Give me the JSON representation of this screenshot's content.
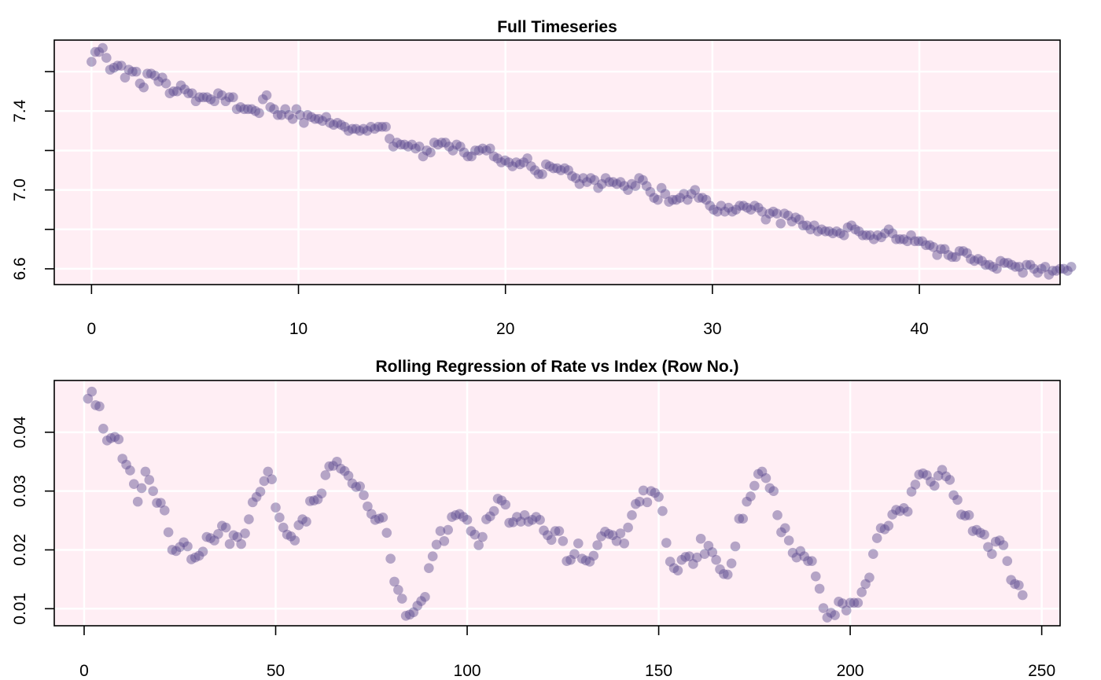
{
  "colors": {
    "panel_bg": "#ffeef4",
    "grid": "#ffffff",
    "point": "#5b4a8e",
    "axis": "#000000"
  },
  "chart_data": [
    {
      "type": "scatter",
      "title": "Full Timeseries",
      "xlabel": "",
      "ylabel": "",
      "xlim": [
        -1.8,
        46.8
      ],
      "ylim": [
        6.52,
        7.76
      ],
      "xticks": [
        0,
        10,
        20,
        30,
        40
      ],
      "xtick_labels": [
        "0",
        "10",
        "20",
        "30",
        "40"
      ],
      "yticks": [
        6.6,
        6.8,
        7.0,
        7.2,
        7.4,
        7.6
      ],
      "ytick_labels": [
        "6.6",
        "",
        "7.0",
        "",
        "7.4",
        ""
      ],
      "grid": true,
      "x_start": 0,
      "x_step": 0.18,
      "y": [
        7.65,
        7.7,
        7.7,
        7.72,
        7.67,
        7.61,
        7.62,
        7.63,
        7.63,
        7.57,
        7.61,
        7.6,
        7.6,
        7.54,
        7.52,
        7.59,
        7.59,
        7.58,
        7.55,
        7.57,
        7.54,
        7.49,
        7.5,
        7.5,
        7.53,
        7.51,
        7.49,
        7.49,
        7.45,
        7.47,
        7.47,
        7.47,
        7.46,
        7.45,
        7.49,
        7.48,
        7.45,
        7.47,
        7.47,
        7.41,
        7.42,
        7.41,
        7.41,
        7.41,
        7.4,
        7.39,
        7.46,
        7.48,
        7.42,
        7.41,
        7.38,
        7.38,
        7.41,
        7.38,
        7.36,
        7.41,
        7.38,
        7.34,
        7.38,
        7.37,
        7.36,
        7.36,
        7.35,
        7.37,
        7.34,
        7.33,
        7.34,
        7.33,
        7.32,
        7.3,
        7.31,
        7.31,
        7.3,
        7.31,
        7.3,
        7.32,
        7.31,
        7.32,
        7.32,
        7.32,
        7.26,
        7.22,
        7.24,
        7.23,
        7.23,
        7.22,
        7.23,
        7.21,
        7.22,
        7.17,
        7.2,
        7.19,
        7.24,
        7.23,
        7.24,
        7.24,
        7.22,
        7.2,
        7.23,
        7.22,
        7.19,
        7.17,
        7.17,
        7.2,
        7.2,
        7.21,
        7.2,
        7.21,
        7.17,
        7.16,
        7.14,
        7.15,
        7.14,
        7.12,
        7.14,
        7.13,
        7.14,
        7.16,
        7.12,
        7.1,
        7.08,
        7.08,
        7.13,
        7.12,
        7.11,
        7.11,
        7.1,
        7.11,
        7.1,
        7.07,
        7.06,
        7.03,
        7.06,
        7.04,
        7.06,
        7.05,
        7.01,
        7.03,
        7.06,
        7.04,
        7.04,
        7.03,
        7.04,
        7.02,
        7.0,
        7.03,
        7.02,
        7.06,
        7.05,
        7.02,
        6.99,
        6.96,
        6.95,
        7.01,
        6.98,
        6.94,
        6.95,
        6.95,
        6.96,
        6.98,
        6.95,
        6.98,
        7.0,
        6.96,
        6.96,
        6.95,
        6.92,
        6.9,
        6.89,
        6.92,
        6.89,
        6.91,
        6.89,
        6.9,
        6.92,
        6.92,
        6.91,
        6.9,
        6.92,
        6.91,
        6.89,
        6.85,
        6.88,
        6.89,
        6.88,
        6.83,
        6.88,
        6.87,
        6.84,
        6.86,
        6.85,
        6.82,
        6.82,
        6.8,
        6.82,
        6.79,
        6.8,
        6.79,
        6.79,
        6.78,
        6.79,
        6.78,
        6.77,
        6.81,
        6.82,
        6.8,
        6.79,
        6.77,
        6.77,
        6.77,
        6.75,
        6.77,
        6.76,
        6.78,
        6.8,
        6.78,
        6.75,
        6.75,
        6.75,
        6.74,
        6.77,
        6.74,
        6.74,
        6.74,
        6.72,
        6.72,
        6.71,
        6.67,
        6.7,
        6.7,
        6.67,
        6.66,
        6.66,
        6.69,
        6.69,
        6.68,
        6.65,
        6.64,
        6.65,
        6.64,
        6.62,
        6.62,
        6.61,
        6.6,
        6.64,
        6.63,
        6.63,
        6.62,
        6.61,
        6.61,
        6.58,
        6.62,
        6.62,
        6.6,
        6.58,
        6.6,
        6.61,
        6.57,
        6.59,
        6.59,
        6.6,
        6.6,
        6.59,
        6.61
      ]
    },
    {
      "type": "scatter",
      "title": "Rolling Regression of Rate vs Index (Row No.)",
      "xlabel": "",
      "ylabel": "",
      "xlim": [
        -7.8,
        254.8
      ],
      "ylim": [
        0.0071,
        0.0488
      ],
      "xticks": [
        0,
        50,
        100,
        150,
        200,
        250
      ],
      "xtick_labels": [
        "0",
        "50",
        "100",
        "150",
        "200",
        "250"
      ],
      "yticks": [
        0.01,
        0.02,
        0.03,
        0.04
      ],
      "ytick_labels": [
        "0.01",
        "0.02",
        "0.03",
        "0.04"
      ],
      "grid": true,
      "x_start": 1,
      "x_step": 1,
      "y": [
        0.0457,
        0.0469,
        0.0446,
        0.0444,
        0.0406,
        0.0386,
        0.039,
        0.0392,
        0.0388,
        0.0355,
        0.0345,
        0.0335,
        0.0312,
        0.0282,
        0.0305,
        0.0333,
        0.0319,
        0.03,
        0.028,
        0.028,
        0.0267,
        0.023,
        0.02,
        0.0198,
        0.0205,
        0.0213,
        0.0206,
        0.0184,
        0.0187,
        0.019,
        0.0197,
        0.0222,
        0.022,
        0.0216,
        0.0227,
        0.0241,
        0.0238,
        0.021,
        0.0225,
        0.0222,
        0.021,
        0.0228,
        0.0252,
        0.0281,
        0.029,
        0.0299,
        0.0317,
        0.0333,
        0.032,
        0.0272,
        0.0255,
        0.0238,
        0.0226,
        0.0223,
        0.0216,
        0.0242,
        0.0252,
        0.0248,
        0.0283,
        0.0284,
        0.0286,
        0.0296,
        0.0327,
        0.0342,
        0.0343,
        0.035,
        0.0338,
        0.0334,
        0.0326,
        0.0313,
        0.0307,
        0.0308,
        0.0293,
        0.0274,
        0.0261,
        0.0251,
        0.0253,
        0.0255,
        0.0229,
        0.0185,
        0.0146,
        0.0132,
        0.0117,
        0.0088,
        0.009,
        0.0094,
        0.0105,
        0.0113,
        0.012,
        0.0169,
        0.0189,
        0.0209,
        0.0232,
        0.0215,
        0.0234,
        0.0256,
        0.0259,
        0.0261,
        0.0256,
        0.0251,
        0.0232,
        0.0226,
        0.0208,
        0.0222,
        0.0252,
        0.0257,
        0.0266,
        0.0287,
        0.0284,
        0.0277,
        0.0246,
        0.0247,
        0.0256,
        0.0248,
        0.0259,
        0.0248,
        0.0251,
        0.0256,
        0.0251,
        0.0233,
        0.0225,
        0.0217,
        0.0232,
        0.0232,
        0.0215,
        0.0181,
        0.0183,
        0.0193,
        0.0211,
        0.0185,
        0.0182,
        0.018,
        0.019,
        0.0208,
        0.0223,
        0.0231,
        0.0227,
        0.0225,
        0.0215,
        0.0228,
        0.0211,
        0.0238,
        0.0259,
        0.0278,
        0.0282,
        0.0301,
        0.0281,
        0.03,
        0.0297,
        0.029,
        0.0266,
        0.0212,
        0.018,
        0.0169,
        0.0165,
        0.0183,
        0.0188,
        0.0189,
        0.0176,
        0.0187,
        0.0219,
        0.0193,
        0.0207,
        0.0196,
        0.0183,
        0.0167,
        0.0159,
        0.0158,
        0.0177,
        0.0206,
        0.0253,
        0.0253,
        0.0282,
        0.0291,
        0.0309,
        0.0329,
        0.0333,
        0.0322,
        0.0305,
        0.03,
        0.0259,
        0.023,
        0.0237,
        0.0216,
        0.0195,
        0.0187,
        0.0198,
        0.0189,
        0.0181,
        0.0181,
        0.0155,
        0.0134,
        0.0101,
        0.0085,
        0.0093,
        0.0089,
        0.0112,
        0.0109,
        0.0097,
        0.011,
        0.011,
        0.011,
        0.0128,
        0.0142,
        0.0153,
        0.0193,
        0.022,
        0.0237,
        0.0235,
        0.0241,
        0.026,
        0.0268,
        0.0266,
        0.0271,
        0.0265,
        0.0299,
        0.0311,
        0.0328,
        0.033,
        0.0327,
        0.0316,
        0.0309,
        0.0326,
        0.0336,
        0.0325,
        0.0319,
        0.0293,
        0.0285,
        0.026,
        0.0258,
        0.0259,
        0.0232,
        0.0234,
        0.0229,
        0.0226,
        0.0205,
        0.0193,
        0.0214,
        0.0216,
        0.0208,
        0.0181,
        0.0149,
        0.0142,
        0.014,
        0.0123
      ]
    }
  ]
}
